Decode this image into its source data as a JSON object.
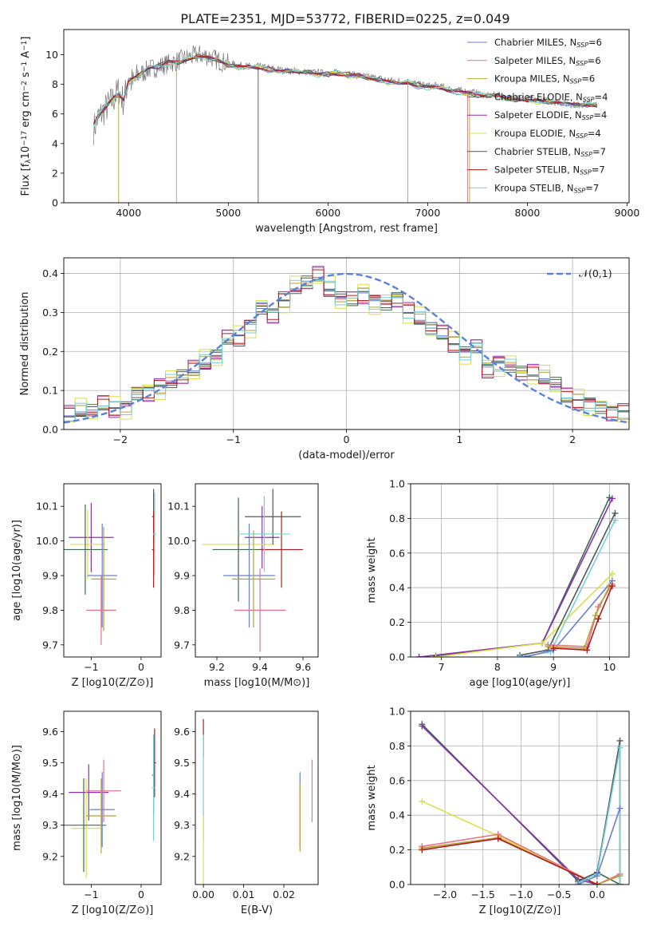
{
  "title": "PLATE=2351, MJD=53772, FIBERID=0225, z=0.049",
  "colors": [
    "#6a7fd1",
    "#e8748a",
    "#b5a23a",
    "#3e6b4e",
    "#8a2fb0",
    "#d8e04a",
    "#555555",
    "#b41c1c",
    "#72d1d6"
  ],
  "chart_data": [
    {
      "id": "spectrum",
      "type": "line",
      "xlabel": "wavelength [Angstrom, rest frame]",
      "ylabel": "Flux [f_λ10^-17 erg cm^-2 s^-1 A^-1]",
      "xlim": [
        3350,
        9020
      ],
      "ylim": [
        0,
        11.7
      ],
      "xticks": [
        4000,
        5000,
        6000,
        7000,
        8000,
        9000
      ],
      "yticks": [
        0,
        2,
        4,
        6,
        8,
        10
      ],
      "legend_position": "upper right",
      "observed_spectrum": {
        "color": "#777777",
        "x": [
          3650,
          3700,
          3750,
          3800,
          3850,
          3900,
          3950,
          4000,
          4050,
          4100,
          4200,
          4300,
          4400,
          4500,
          4600,
          4700,
          4800,
          4900,
          5000,
          5100,
          5200,
          5300,
          5400,
          5500,
          5600,
          5700,
          5800,
          5900,
          6000,
          6100,
          6200,
          6300,
          6400,
          6500,
          6600,
          6700,
          6800,
          6900,
          7000,
          7100,
          7200,
          7300,
          7400,
          7500,
          7600,
          7700,
          7800,
          7900,
          8000,
          8100,
          8200,
          8300,
          8400,
          8500,
          8600,
          8700
        ],
        "y": [
          5.0,
          5.8,
          6.2,
          6.6,
          7.0,
          7.6,
          6.8,
          8.4,
          8.0,
          8.6,
          9.0,
          9.2,
          9.4,
          9.6,
          9.8,
          10.0,
          9.9,
          9.6,
          9.4,
          9.3,
          9.2,
          9.2,
          9.1,
          9.0,
          8.9,
          8.9,
          8.8,
          8.8,
          8.7,
          8.8,
          8.7,
          8.6,
          8.5,
          8.4,
          8.3,
          8.2,
          8.2,
          8.0,
          7.9,
          7.9,
          7.7,
          7.6,
          7.5,
          7.4,
          7.2,
          7.3,
          7.1,
          7.0,
          7.0,
          6.9,
          6.9,
          6.8,
          6.7,
          6.6,
          6.7,
          6.6
        ]
      },
      "model_spectrum": {
        "x": [
          3650,
          3700,
          3750,
          3800,
          3850,
          3900,
          3950,
          4000,
          4100,
          4200,
          4300,
          4400,
          4500,
          4600,
          4700,
          4800,
          4900,
          5000,
          5100,
          5200,
          5300,
          5400,
          5500,
          5600,
          5700,
          5800,
          5900,
          6000,
          6100,
          6200,
          6300,
          6400,
          6500,
          6600,
          6700,
          6800,
          6900,
          7000,
          7100,
          7200,
          7300,
          7400,
          7500,
          7600,
          7700,
          7800,
          7900,
          8000,
          8100,
          8200,
          8300,
          8400,
          8500,
          8600,
          8700
        ],
        "y": [
          5.3,
          5.9,
          6.3,
          6.7,
          7.1,
          7.3,
          7.0,
          8.2,
          8.6,
          9.1,
          9.2,
          9.5,
          9.5,
          9.7,
          9.9,
          9.8,
          9.6,
          9.3,
          9.2,
          9.2,
          9.1,
          9.0,
          8.9,
          8.9,
          8.8,
          8.8,
          8.7,
          8.7,
          8.7,
          8.6,
          8.6,
          8.4,
          8.3,
          8.2,
          8.1,
          8.1,
          7.9,
          7.8,
          7.8,
          7.6,
          7.5,
          7.4,
          7.3,
          7.2,
          7.2,
          7.0,
          7.0,
          6.9,
          6.9,
          6.8,
          6.8,
          6.7,
          6.6,
          6.6,
          6.6
        ]
      },
      "legend": [
        {
          "label": "Chabrier MILES, N_SSP=6"
        },
        {
          "label": "Salpeter MILES, N_SSP=6"
        },
        {
          "label": "Kroupa MILES, N_SSP=6"
        },
        {
          "label": "Chabrier ELODIE, N_SSP=4"
        },
        {
          "label": "Salpeter ELODIE, N_SSP=4"
        },
        {
          "label": "Kroupa ELODIE, N_SSP=4"
        },
        {
          "label": "Chabrier STELIB, N_SSP=7"
        },
        {
          "label": "Salpeter STELIB, N_SSP=7"
        },
        {
          "label": "Kroupa STELIB, N_SSP=7"
        }
      ]
    },
    {
      "id": "residuals",
      "type": "line",
      "xlabel": "(data-model)/error",
      "ylabel": "Normed distribution",
      "xlim": [
        -2.5,
        2.5
      ],
      "ylim": [
        0,
        0.44
      ],
      "xticks": [
        -2,
        -1,
        0,
        1,
        2
      ],
      "yticks": [
        0.0,
        0.1,
        0.2,
        0.3,
        0.4
      ],
      "grid": true,
      "reference_curve": {
        "label": "𝒩(0,1)",
        "mean": 0,
        "sigma": 1,
        "color": "#5b82d6",
        "style": "dashed"
      },
      "legend_position": "upper right",
      "histogram_bins": [
        -2.5,
        -2.4,
        -2.3,
        -2.2,
        -2.1,
        -2.0,
        -1.9,
        -1.8,
        -1.7,
        -1.6,
        -1.5,
        -1.4,
        -1.3,
        -1.2,
        -1.1,
        -1.0,
        -0.9,
        -0.8,
        -0.7,
        -0.6,
        -0.5,
        -0.4,
        -0.3,
        -0.2,
        -0.1,
        0.0,
        0.1,
        0.2,
        0.3,
        0.4,
        0.5,
        0.6,
        0.7,
        0.8,
        0.9,
        1.0,
        1.1,
        1.2,
        1.3,
        1.4,
        1.5,
        1.6,
        1.7,
        1.8,
        1.9,
        2.0,
        2.1,
        2.2,
        2.3,
        2.4
      ],
      "histogram_base": [
        0.035,
        0.045,
        0.05,
        0.06,
        0.055,
        0.06,
        0.09,
        0.1,
        0.11,
        0.12,
        0.14,
        0.15,
        0.17,
        0.19,
        0.23,
        0.24,
        0.27,
        0.31,
        0.3,
        0.33,
        0.36,
        0.38,
        0.39,
        0.36,
        0.34,
        0.33,
        0.35,
        0.33,
        0.32,
        0.34,
        0.3,
        0.28,
        0.26,
        0.24,
        0.22,
        0.2,
        0.21,
        0.16,
        0.17,
        0.16,
        0.15,
        0.14,
        0.13,
        0.12,
        0.08,
        0.075,
        0.07,
        0.055,
        0.05,
        0.045
      ],
      "series": [
        {
          "offset": 0.0
        },
        {
          "offset": 0.018
        },
        {
          "offset": -0.012
        },
        {
          "offset": 0.01
        },
        {
          "offset": -0.02
        },
        {
          "offset": 0.025
        },
        {
          "offset": -0.006
        },
        {
          "offset": 0.014
        },
        {
          "offset": -0.016
        }
      ]
    },
    {
      "id": "age-vs-Z",
      "type": "scatter",
      "xlabel": "Z [log10(Z/Z⊙)]",
      "ylabel": "age [log10(age/yr)]",
      "xlim": [
        -1.55,
        0.4
      ],
      "ylim": [
        9.665,
        10.165
      ],
      "xticks": [
        -1,
        0
      ],
      "yticks": [
        9.7,
        9.8,
        9.9,
        10.0,
        10.1
      ],
      "errorbars": [
        {
          "color": 4,
          "x": -1.0,
          "y": 10.01,
          "xerr": 0.45,
          "yerr": 0.1
        },
        {
          "color": 5,
          "x": -1.07,
          "y": 9.99,
          "xerr": 0.35,
          "yerr": 0.1
        },
        {
          "color": 3,
          "x": -1.12,
          "y": 9.975,
          "xerr": 0.45,
          "yerr": 0.13
        },
        {
          "color": 0,
          "x": -0.78,
          "y": 9.9,
          "xerr": 0.3,
          "yerr": 0.15
        },
        {
          "color": 1,
          "x": -0.8,
          "y": 9.8,
          "xerr": 0.3,
          "yerr": 0.1
        },
        {
          "color": 2,
          "x": -0.75,
          "y": 9.89,
          "xerr": 0.25,
          "yerr": 0.15
        },
        {
          "color": 6,
          "x": 0.25,
          "y": 10.07,
          "xerr": 0.03,
          "yerr": 0.08
        },
        {
          "color": 7,
          "x": 0.25,
          "y": 9.975,
          "xerr": 0.03,
          "yerr": 0.11
        },
        {
          "color": 8,
          "x": 0.27,
          "y": 10.02,
          "xerr": 0.03,
          "yerr": 0.12
        }
      ]
    },
    {
      "id": "age-vs-mass",
      "type": "scatter",
      "xlabel": "mass [log10(M/M⊙)]",
      "ylabel": "",
      "xlim": [
        9.1,
        9.67
      ],
      "ylim": [
        9.665,
        10.165
      ],
      "xticks": [
        9.2,
        9.4,
        9.6
      ],
      "yticks": [
        9.7,
        9.8,
        9.9,
        10.0,
        10.1
      ],
      "errorbars": [
        {
          "color": 4,
          "x": 9.41,
          "y": 10.01,
          "xerr": 0.08,
          "yerr": 0.09
        },
        {
          "color": 5,
          "x": 9.3,
          "y": 9.99,
          "xerr": 0.17,
          "yerr": 0.1
        },
        {
          "color": 3,
          "x": 9.3,
          "y": 9.975,
          "xerr": 0.12,
          "yerr": 0.15
        },
        {
          "color": 0,
          "x": 9.35,
          "y": 9.9,
          "xerr": 0.12,
          "yerr": 0.15
        },
        {
          "color": 1,
          "x": 9.4,
          "y": 9.8,
          "xerr": 0.12,
          "yerr": 0.12
        },
        {
          "color": 2,
          "x": 9.37,
          "y": 9.89,
          "xerr": 0.1,
          "yerr": 0.14
        },
        {
          "color": 6,
          "x": 9.46,
          "y": 10.07,
          "xerr": 0.13,
          "yerr": 0.08
        },
        {
          "color": 7,
          "x": 9.5,
          "y": 9.975,
          "xerr": 0.1,
          "yerr": 0.11
        },
        {
          "color": 8,
          "x": 9.42,
          "y": 10.02,
          "xerr": 0.12,
          "yerr": 0.11
        }
      ]
    },
    {
      "id": "weight-vs-age",
      "type": "line",
      "xlabel": "age [log10(age/yr)]",
      "ylabel": "mass weight",
      "xlim": [
        6.45,
        10.35
      ],
      "ylim": [
        0,
        1.0
      ],
      "xticks": [
        7,
        8,
        9,
        10
      ],
      "yticks": [
        0.0,
        0.2,
        0.4,
        0.6,
        0.8,
        1.0
      ],
      "grid": true,
      "series": [
        {
          "color": 3,
          "x": [
            6.9,
            8.8,
            10.0
          ],
          "y": [
            0.005,
            0.08,
            0.92
          ]
        },
        {
          "color": 4,
          "x": [
            6.6,
            8.8,
            10.05
          ],
          "y": [
            0.0,
            0.08,
            0.915
          ]
        },
        {
          "color": 5,
          "x": [
            6.9,
            8.8,
            10.05
          ],
          "y": [
            0.0,
            0.08,
            0.48
          ]
        },
        {
          "color": 6,
          "x": [
            8.4,
            8.9,
            10.1
          ],
          "y": [
            0.01,
            0.04,
            0.83
          ]
        },
        {
          "color": 8,
          "x": [
            8.4,
            8.95,
            10.1
          ],
          "y": [
            0.0,
            0.03,
            0.79
          ]
        },
        {
          "color": 0,
          "x": [
            8.5,
            9.0,
            10.05
          ],
          "y": [
            0.0,
            0.04,
            0.44
          ]
        },
        {
          "color": 1,
          "x": [
            8.9,
            9.6,
            9.8,
            10.05
          ],
          "y": [
            0.07,
            0.06,
            0.29,
            0.42
          ]
        },
        {
          "color": 2,
          "x": [
            8.9,
            9.55,
            9.75,
            10.0
          ],
          "y": [
            0.06,
            0.05,
            0.24,
            0.41
          ]
        },
        {
          "color": 7,
          "x": [
            9.0,
            9.6,
            9.8,
            10.05
          ],
          "y": [
            0.05,
            0.04,
            0.22,
            0.41
          ]
        }
      ]
    },
    {
      "id": "mass-vs-Z",
      "type": "scatter",
      "xlabel": "Z [log10(Z/Z⊙)]",
      "ylabel": "mass [log10(M/M⊙)]",
      "xlim": [
        -1.55,
        0.4
      ],
      "ylim": [
        9.11,
        9.665
      ],
      "xticks": [
        -1,
        0
      ],
      "yticks": [
        9.2,
        9.3,
        9.4,
        9.5,
        9.6
      ],
      "errorbars": [
        {
          "color": 4,
          "x": -1.05,
          "y": 9.405,
          "xerr": 0.4,
          "yerr": 0.09
        },
        {
          "color": 5,
          "x": -1.1,
          "y": 9.29,
          "xerr": 0.3,
          "yerr": 0.16
        },
        {
          "color": 3,
          "x": -1.15,
          "y": 9.3,
          "xerr": 0.45,
          "yerr": 0.15
        },
        {
          "color": 0,
          "x": -0.78,
          "y": 9.35,
          "xerr": 0.25,
          "yerr": 0.12
        },
        {
          "color": 1,
          "x": -0.75,
          "y": 9.41,
          "xerr": 0.35,
          "yerr": 0.1
        },
        {
          "color": 2,
          "x": -0.8,
          "y": 9.33,
          "xerr": 0.3,
          "yerr": 0.12
        },
        {
          "color": 6,
          "x": 0.25,
          "y": 9.46,
          "xerr": 0.03,
          "yerr": 0.13
        },
        {
          "color": 7,
          "x": 0.27,
          "y": 9.5,
          "xerr": 0.03,
          "yerr": 0.11
        },
        {
          "color": 8,
          "x": 0.25,
          "y": 9.42,
          "xerr": 0.03,
          "yerr": 0.17
        }
      ]
    },
    {
      "id": "mass-vs-ebv",
      "type": "scatter",
      "xlabel": "E(B-V)",
      "ylabel": "",
      "xlim": [
        -0.002,
        0.0285
      ],
      "ylim": [
        9.11,
        9.665
      ],
      "xticks": [
        0.0,
        0.01,
        0.02
      ],
      "yticks": [
        9.2,
        9.3,
        9.4,
        9.5,
        9.6
      ],
      "errorbars": [
        {
          "color": 7,
          "x": 0.0,
          "y": 9.58,
          "xerr": 0,
          "yerr": 0.06
        },
        {
          "color": 8,
          "x": 0.0,
          "y": 9.42,
          "xerr": 0,
          "yerr": 0.17
        },
        {
          "color": 5,
          "x": 0.0,
          "y": 9.22,
          "xerr": 0,
          "yerr": 0.11
        },
        {
          "color": 0,
          "x": 0.024,
          "y": 9.35,
          "xerr": 0,
          "yerr": 0.12
        },
        {
          "color": 2,
          "x": 0.024,
          "y": 9.325,
          "xerr": 0,
          "yerr": 0.11
        },
        {
          "color": 1,
          "x": 0.027,
          "y": 9.41,
          "xerr": 0,
          "yerr": 0.1
        }
      ]
    },
    {
      "id": "weight-vs-Z",
      "type": "line",
      "xlabel": "Z [log10(Z/Z⊙)]",
      "ylabel": "mass weight",
      "xlim": [
        -2.45,
        0.42
      ],
      "ylim": [
        0,
        1.0
      ],
      "xticks": [
        -2.0,
        -1.5,
        -1.0,
        -0.5,
        0.0
      ],
      "yticks": [
        0.0,
        0.2,
        0.4,
        0.6,
        0.8,
        1.0
      ],
      "grid": true,
      "series": [
        {
          "color": 3,
          "x": [
            -2.3,
            -0.25,
            0.0,
            0.3
          ],
          "y": [
            0.925,
            0.02,
            0.07,
            0.0
          ]
        },
        {
          "color": 4,
          "x": [
            -2.3,
            -0.25,
            0.0
          ],
          "y": [
            0.915,
            0.03,
            0.0
          ]
        },
        {
          "color": 5,
          "x": [
            -2.3,
            -1.3,
            0.0
          ],
          "y": [
            0.48,
            0.28,
            0.0
          ]
        },
        {
          "color": 1,
          "x": [
            -2.3,
            -1.3,
            0.0,
            0.3
          ],
          "y": [
            0.22,
            0.29,
            0.0,
            0.06
          ]
        },
        {
          "color": 2,
          "x": [
            -2.3,
            -1.3,
            0.0,
            0.3
          ],
          "y": [
            0.21,
            0.27,
            0.0,
            0.05
          ]
        },
        {
          "color": 7,
          "x": [
            -2.3,
            -1.3,
            0.0
          ],
          "y": [
            0.2,
            0.265,
            0.0
          ]
        },
        {
          "color": 6,
          "x": [
            -0.25,
            0.0,
            0.3,
            0.3
          ],
          "y": [
            0.02,
            0.07,
            0.83,
            0.0
          ]
        },
        {
          "color": 8,
          "x": [
            -0.25,
            0.0,
            0.3,
            0.3
          ],
          "y": [
            0.01,
            0.06,
            0.79,
            0.0
          ]
        },
        {
          "color": 0,
          "x": [
            -0.25,
            0.0,
            0.3
          ],
          "y": [
            0.0,
            0.05,
            0.44
          ]
        }
      ]
    }
  ]
}
